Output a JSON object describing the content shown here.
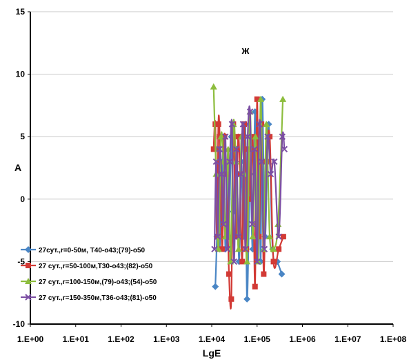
{
  "chart_data": {
    "type": "line",
    "title": "",
    "panel_label": "ж",
    "xlabel": "LgE",
    "ylabel": "A",
    "xscale": "log",
    "xlim": [
      1,
      100000000
    ],
    "ylim": [
      -10,
      15
    ],
    "grid": "horizontal",
    "legend_position": "bottom-left",
    "x_ticks": [
      "1.E+00",
      "1.E+01",
      "1.E+02",
      "1.E+03",
      "1.E+04",
      "1.E+05",
      "1.E+06",
      "1.E+07",
      "1.E+08"
    ],
    "y_ticks": [
      "15",
      "10",
      "5",
      "0",
      "-5",
      "-10"
    ],
    "series": [
      {
        "name": "27сут.,r=0-50м, T40-о43;(79)-о50",
        "color": "#4a86c5",
        "marker": "diamond",
        "x": [
          12000,
          13000,
          14000,
          15000,
          16000,
          17000,
          18000,
          20000,
          22000,
          24000,
          27000,
          30000,
          35000,
          40000,
          45000,
          50000,
          55000,
          60000,
          70000,
          80000,
          90000,
          100000,
          110000,
          120000,
          130000,
          150000,
          180000,
          220000,
          280000,
          350000
        ],
        "y": [
          -7,
          -3,
          4,
          -4,
          3,
          -2,
          5,
          -4,
          2,
          -3,
          5,
          -1,
          4,
          -5,
          3,
          -3,
          6,
          -8,
          2,
          -4,
          7,
          -2,
          5,
          -5,
          8,
          -3,
          6,
          -4,
          -5,
          -6
        ]
      },
      {
        "name": "27 сут.,r=50-100м,T30-о43;(82)-о50",
        "color": "#d23a35",
        "marker": "square",
        "x": [
          11000,
          12000,
          13000,
          14000,
          15000,
          17000,
          19000,
          21000,
          24000,
          27000,
          30000,
          34000,
          38000,
          42000,
          47000,
          52000,
          58000,
          65000,
          72000,
          80000,
          90000,
          100000,
          110000,
          125000,
          140000,
          160000,
          190000,
          230000,
          300000,
          380000
        ],
        "y": [
          4,
          6,
          -3,
          6,
          5,
          -4,
          5,
          2,
          -6,
          -8,
          6,
          -3,
          5,
          2,
          -5,
          6,
          -4,
          4,
          0,
          5,
          -7,
          8,
          -3,
          6,
          -6,
          3,
          5,
          -5,
          -4,
          -3
        ]
      },
      {
        "name": "27 сут.,r=100-150м,(79)-о43;(54)-о50",
        "color": "#8dbd3e",
        "marker": "triangle",
        "x": [
          11000,
          12500,
          14000,
          16000,
          18000,
          20000,
          23000,
          26000,
          30000,
          34000,
          39000,
          45000,
          52000,
          60000,
          70000,
          80000,
          92000,
          105000,
          120000,
          140000,
          160000,
          190000,
          230000,
          290000,
          370000
        ],
        "y": [
          9,
          2,
          -4,
          5,
          3,
          -3,
          4,
          -5,
          6,
          3,
          -4,
          5,
          2,
          -5,
          7,
          -3,
          5,
          -5,
          8,
          -4,
          6,
          -3,
          -4,
          -2,
          8
        ]
      },
      {
        "name": "27  сут.,r=150-350м,T36-о43;(81)-о50",
        "color": "#7b4ea3",
        "marker": "x",
        "x": [
          11500,
          12500,
          13500,
          15000,
          16500,
          18000,
          20000,
          22000,
          25000,
          28000,
          31000,
          35000,
          39000,
          44000,
          49000,
          55000,
          62000,
          70000,
          78000,
          88000,
          100000,
          112000,
          126000,
          145000,
          170000,
          200000,
          240000,
          300000,
          360000,
          400000
        ],
        "y": [
          -4,
          3,
          -3,
          4,
          2,
          -2,
          5,
          -4,
          3,
          6,
          -5,
          4,
          -3,
          2,
          6,
          -4,
          5,
          7,
          -2,
          4,
          -5,
          6,
          3,
          -4,
          5,
          2,
          3,
          -3,
          5,
          4
        ]
      }
    ]
  }
}
